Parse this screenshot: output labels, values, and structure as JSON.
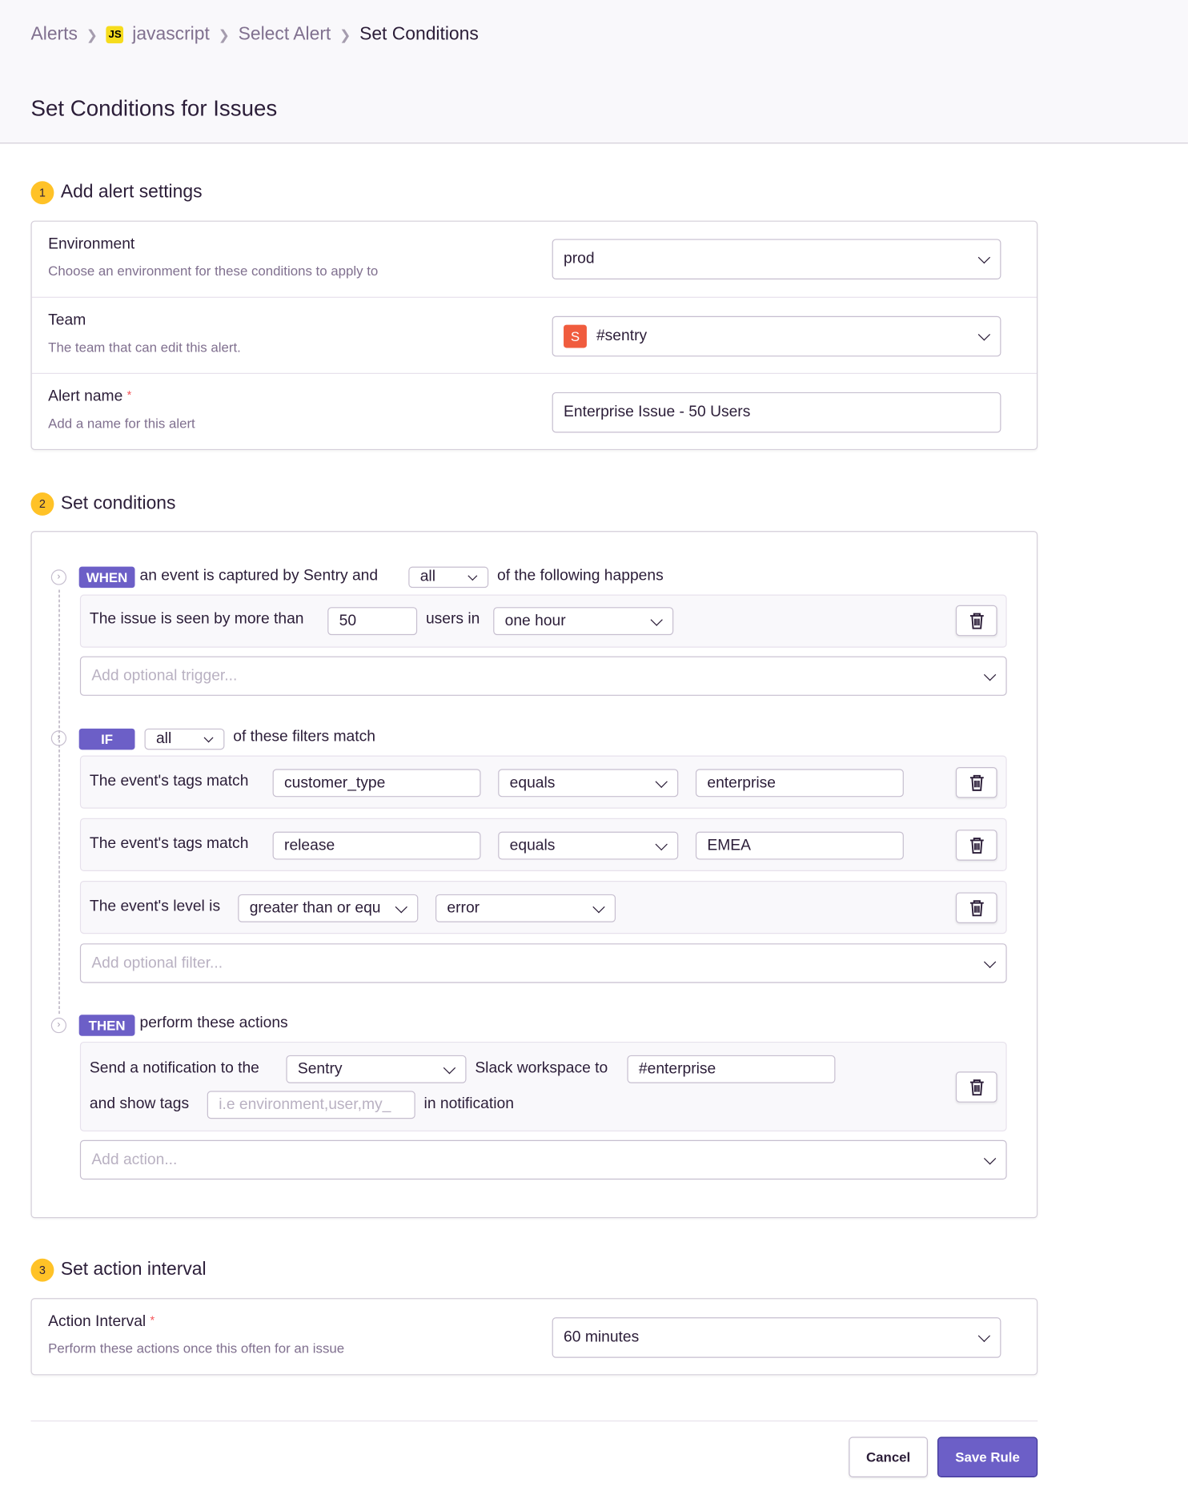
{
  "breadcrumb": {
    "items": [
      "Alerts",
      "javascript",
      "Select Alert",
      "Set Conditions"
    ],
    "project_badge": "JS"
  },
  "page_title": "Set Conditions for Issues",
  "section1": {
    "number": "1",
    "title": "Add alert settings",
    "environment": {
      "label": "Environment",
      "description": "Choose an environment for these conditions to apply to",
      "value": "prod"
    },
    "team": {
      "label": "Team",
      "description": "The team that can edit this alert.",
      "avatar": "S",
      "value": "#sentry",
      "avatar_color": "#f05c3e"
    },
    "alert_name": {
      "label": "Alert name",
      "required": "*",
      "description": "Add a name for this alert",
      "value": "Enterprise Issue - 50 Users"
    }
  },
  "section2": {
    "number": "2",
    "title": "Set conditions",
    "when": {
      "badge": "WHEN",
      "text_before": "an event is captured by Sentry and",
      "match": "all",
      "text_after": "of the following happens",
      "condition": {
        "text1": "The issue is seen by more than",
        "count": "50",
        "text2": "users in",
        "interval": "one hour"
      },
      "add_placeholder": "Add optional trigger..."
    },
    "if": {
      "badge": "IF",
      "match": "all",
      "text_after": "of these filters match",
      "filters": [
        {
          "label": "The event's tags match",
          "key": "customer_type",
          "op": "equals",
          "value": "enterprise"
        },
        {
          "label": "The event's tags match",
          "key": "release",
          "op": "equals",
          "value": "EMEA"
        }
      ],
      "level_filter": {
        "label": "The event's level is",
        "op": "greater than or equ",
        "level": "error"
      },
      "add_placeholder": "Add optional filter..."
    },
    "then": {
      "badge": "THEN",
      "text": "perform these actions",
      "action": {
        "text1": "Send a notification to the",
        "workspace": "Sentry",
        "text2": "Slack workspace to",
        "channel": "#enterprise",
        "text3": "and show tags",
        "tags_placeholder": "i.e environment,user,my_",
        "text4": "in notification"
      },
      "add_placeholder": "Add action..."
    }
  },
  "section3": {
    "number": "3",
    "title": "Set action interval",
    "interval": {
      "label": "Action Interval",
      "required": "*",
      "description": "Perform these actions once this often for an issue",
      "value": "60 minutes"
    }
  },
  "footer": {
    "cancel": "Cancel",
    "save": "Save Rule"
  },
  "colors": {
    "accent": "#6c5fc7",
    "step_badge": "#ffc227"
  }
}
